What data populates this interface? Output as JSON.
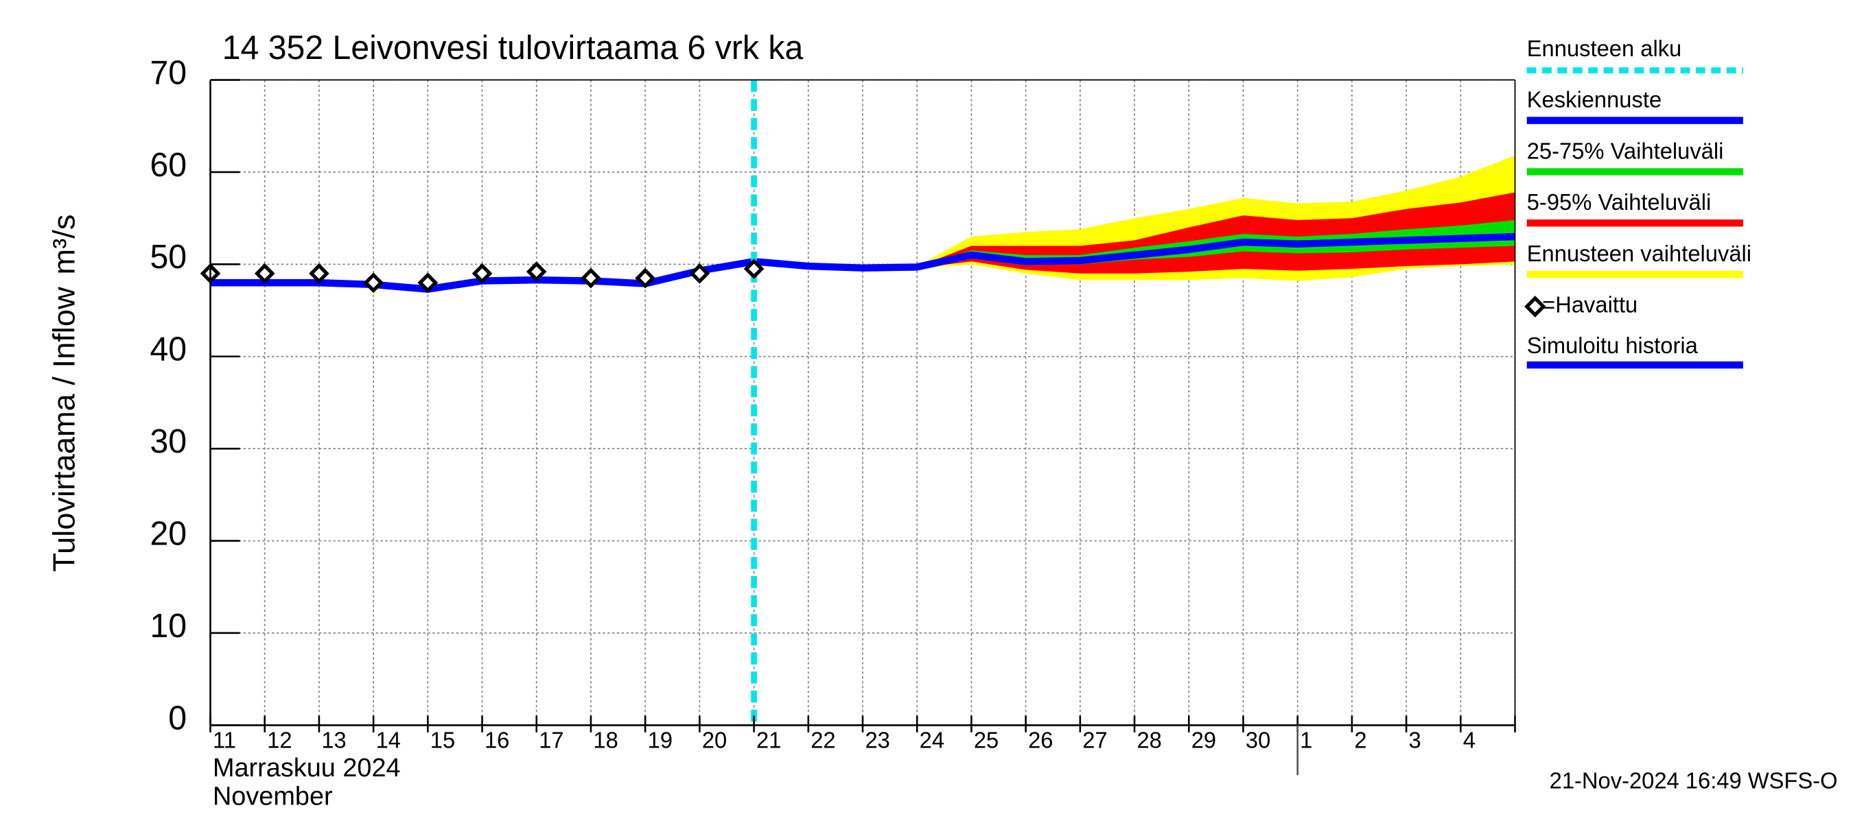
{
  "chart_data": {
    "type": "line",
    "title": "14 352 Leivonvesi tulovirtaama 6 vrk ka",
    "y_label": "Tulovirtaama / Inflow",
    "y_unit": "m³/s",
    "x_label": "Marraskuu 2024",
    "x_label_2": "November",
    "footer": "21-Nov-2024 16:49 WSFS-O",
    "categories": [
      "11",
      "12",
      "13",
      "14",
      "15",
      "16",
      "17",
      "18",
      "19",
      "20",
      "21",
      "22",
      "23",
      "24",
      "25",
      "26",
      "27",
      "28",
      "29",
      "30",
      "1",
      "2",
      "3",
      "4",
      null
    ],
    "ylim": [
      0,
      70
    ],
    "yticks": [
      0,
      10,
      20,
      30,
      40,
      50,
      60,
      70
    ],
    "grid": true,
    "forecast_start": {
      "name": "Ennusteen alku",
      "color": "#00e5e5",
      "category": 10
    },
    "bands": [
      {
        "name": "Ennusteen vaihteluväli",
        "color": "#ffff00",
        "low": [
          null,
          null,
          null,
          null,
          null,
          null,
          null,
          null,
          null,
          null,
          50.3,
          49.8,
          49.6,
          49.5,
          50,
          49,
          48.3,
          48.3,
          48.3,
          48.5,
          48.2,
          48.6,
          49.5,
          49.8,
          50
        ],
        "high": [
          null,
          null,
          null,
          null,
          null,
          null,
          null,
          null,
          null,
          null,
          50.3,
          49.8,
          49.6,
          49.8,
          53,
          53.5,
          53.8,
          55,
          56,
          57.2,
          56.6,
          56.8,
          58,
          59.5,
          61.8
        ]
      },
      {
        "name": "5-95% Vaihteluväli",
        "color": "#ff0000",
        "low": [
          null,
          null,
          null,
          null,
          null,
          null,
          null,
          null,
          null,
          null,
          50.3,
          49.8,
          49.6,
          49.6,
          50.3,
          49.4,
          49,
          49,
          49.2,
          49.5,
          49.3,
          49.5,
          49.8,
          50,
          50.3
        ],
        "high": [
          null,
          null,
          null,
          null,
          null,
          null,
          null,
          null,
          null,
          null,
          50.3,
          49.8,
          49.6,
          49.7,
          52,
          52,
          52,
          52.6,
          54,
          55.3,
          54.8,
          55,
          56,
          56.7,
          57.8
        ]
      },
      {
        "name": "25-75% Vaihteluväli",
        "color": "#00e000",
        "low": [
          null,
          null,
          null,
          null,
          null,
          null,
          null,
          null,
          null,
          null,
          50.3,
          49.8,
          49.6,
          49.6,
          50.7,
          50,
          50,
          50.5,
          50.8,
          51.4,
          51.2,
          51.3,
          51.6,
          51.8,
          52
        ],
        "high": [
          null,
          null,
          null,
          null,
          null,
          null,
          null,
          null,
          null,
          null,
          50.3,
          49.8,
          49.6,
          49.7,
          51.5,
          51,
          51,
          51.8,
          52.5,
          53.3,
          53,
          53.3,
          53.8,
          54.2,
          54.8
        ]
      }
    ],
    "series": [
      {
        "name": "Keskiennuste",
        "color": "#0000ff",
        "values": [
          null,
          null,
          null,
          null,
          null,
          null,
          null,
          null,
          null,
          null,
          50.3,
          49.8,
          49.6,
          49.7,
          51,
          50.3,
          50.4,
          51,
          51.6,
          52.4,
          52.2,
          52.4,
          52.6,
          52.8,
          53
        ]
      },
      {
        "name": "Simuloitu historia",
        "color": "#0000ff",
        "values": [
          48,
          48,
          48,
          47.8,
          47.3,
          48.2,
          48.3,
          48.2,
          47.9,
          49.3,
          50.3,
          null,
          null,
          null,
          null,
          null,
          null,
          null,
          null,
          null,
          null,
          null,
          null,
          null,
          null
        ]
      },
      {
        "name": "=Havaittu",
        "color": "#000000",
        "marker": "diamond",
        "values": [
          49,
          49,
          49,
          48,
          48,
          49,
          49.2,
          48.5,
          48.5,
          49,
          49.5,
          null,
          null,
          null,
          null,
          null,
          null,
          null,
          null,
          null,
          null,
          null,
          null,
          null,
          null
        ]
      }
    ]
  }
}
